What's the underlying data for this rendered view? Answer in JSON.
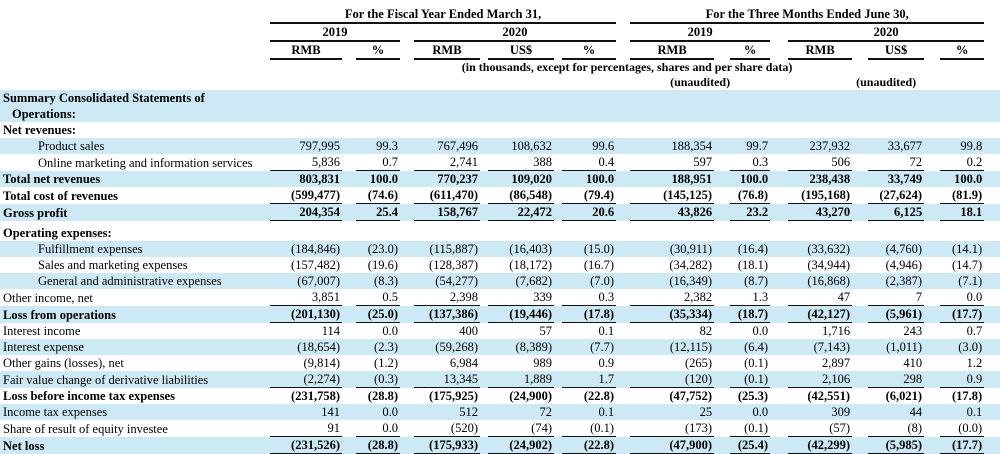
{
  "colors": {
    "row_highlight": "#cde9f6",
    "rule": "#111111",
    "text": "#000000"
  },
  "table": {
    "note": "(in thousands, except for percentages, shares and per share data)",
    "sections": [
      {
        "title": "For the Fiscal Year Ended March 31,",
        "years": [
          {
            "label": "2019",
            "cols": [
              "RMB",
              "%"
            ]
          },
          {
            "label": "2020",
            "cols": [
              "RMB",
              "US$",
              "%"
            ]
          }
        ]
      },
      {
        "title": "For the Three Months Ended June 30,",
        "years": [
          {
            "label": "2019",
            "cols": [
              "RMB",
              "%"
            ],
            "unaudited": "(unaudited)"
          },
          {
            "label": "2020",
            "cols": [
              "RMB",
              "US$",
              "%"
            ],
            "unaudited": "(unaudited)"
          }
        ]
      }
    ],
    "rows": [
      {
        "label": "Summary Consolidated Statements of Operations:",
        "bold": true,
        "highlight": true,
        "indent": false,
        "underline": false,
        "values": null
      },
      {
        "label": "Net revenues:",
        "bold": true,
        "highlight": false,
        "indent": false,
        "underline": false,
        "values": null
      },
      {
        "label": "Product sales",
        "bold": false,
        "highlight": true,
        "indent": true,
        "underline": false,
        "values": [
          "797,995",
          "99.3",
          "767,496",
          "108,632",
          "99.6",
          "188,354",
          "99.7",
          "237,932",
          "33,677",
          "99.8"
        ]
      },
      {
        "label": "Online marketing and information services",
        "bold": false,
        "highlight": false,
        "indent": true,
        "underline": true,
        "values": [
          "5,836",
          "0.7",
          "2,741",
          "388",
          "0.4",
          "597",
          "0.3",
          "506",
          "72",
          "0.2"
        ]
      },
      {
        "label": "Total net revenues",
        "bold": true,
        "highlight": true,
        "indent": false,
        "underline": false,
        "values": [
          "803,831",
          "100.0",
          "770,237",
          "109,020",
          "100.0",
          "188,951",
          "100.0",
          "238,438",
          "33,749",
          "100.0"
        ]
      },
      {
        "label": "Total cost of revenues",
        "bold": true,
        "highlight": false,
        "indent": false,
        "underline": true,
        "values": [
          "(599,477)",
          "(74.6)",
          "(611,470)",
          "(86,548)",
          "(79.4)",
          "(145,125)",
          "(76.8)",
          "(195,168)",
          "(27,624)",
          "(81.9)"
        ]
      },
      {
        "label": "Gross profit",
        "bold": true,
        "highlight": true,
        "indent": false,
        "underline": true,
        "values": [
          "204,354",
          "25.4",
          "158,767",
          "22,472",
          "20.6",
          "43,826",
          "23.2",
          "43,270",
          "6,125",
          "18.1"
        ]
      },
      {
        "label": "Operating expenses:",
        "bold": true,
        "highlight": false,
        "indent": false,
        "underline": false,
        "gap_before": true,
        "values": null
      },
      {
        "label": "Fulfillment expenses",
        "bold": false,
        "highlight": true,
        "indent": true,
        "underline": false,
        "values": [
          "(184,846)",
          "(23.0)",
          "(115,887)",
          "(16,403)",
          "(15.0)",
          "(30,911)",
          "(16.4)",
          "(33,632)",
          "(4,760)",
          "(14.1)"
        ]
      },
      {
        "label": "Sales and marketing expenses",
        "bold": false,
        "highlight": false,
        "indent": true,
        "underline": false,
        "values": [
          "(157,482)",
          "(19.6)",
          "(128,387)",
          "(18,172)",
          "(16.7)",
          "(34,282)",
          "(18.1)",
          "(34,944)",
          "(4,946)",
          "(14.7)"
        ]
      },
      {
        "label": "General and administrative expenses",
        "bold": false,
        "highlight": true,
        "indent": true,
        "underline": false,
        "values": [
          "(67,007)",
          "(8.3)",
          "(54,277)",
          "(7,682)",
          "(7.0)",
          "(16,349)",
          "(8.7)",
          "(16,868)",
          "(2,387)",
          "(7.1)"
        ]
      },
      {
        "label": "Other income, net",
        "bold": false,
        "highlight": false,
        "indent": false,
        "underline": true,
        "values": [
          "3,851",
          "0.5",
          "2,398",
          "339",
          "0.3",
          "2,382",
          "1.3",
          "47",
          "7",
          "0.0"
        ]
      },
      {
        "label": "Loss from operations",
        "bold": true,
        "highlight": true,
        "indent": false,
        "underline": true,
        "values": [
          "(201,130)",
          "(25.0)",
          "(137,386)",
          "(19,446)",
          "(17.8)",
          "(35,334)",
          "(18.7)",
          "(42,127)",
          "(5,961)",
          "(17.7)"
        ]
      },
      {
        "label": "Interest income",
        "bold": false,
        "highlight": false,
        "indent": false,
        "underline": false,
        "values": [
          "114",
          "0.0",
          "400",
          "57",
          "0.1",
          "82",
          "0.0",
          "1,716",
          "243",
          "0.7"
        ]
      },
      {
        "label": "Interest expense",
        "bold": false,
        "highlight": true,
        "indent": false,
        "underline": false,
        "values": [
          "(18,654)",
          "(2.3)",
          "(59,268)",
          "(8,389)",
          "(7.7)",
          "(12,115)",
          "(6.4)",
          "(7,143)",
          "(1,011)",
          "(3.0)"
        ]
      },
      {
        "label": "Other gains (losses), net",
        "bold": false,
        "highlight": false,
        "indent": false,
        "underline": false,
        "values": [
          "(9,814)",
          "(1.2)",
          "6,984",
          "989",
          "0.9",
          "(265)",
          "(0.1)",
          "2,897",
          "410",
          "1.2"
        ]
      },
      {
        "label": "Fair value change of derivative liabilities",
        "bold": false,
        "highlight": true,
        "indent": false,
        "underline": true,
        "values": [
          "(2,274)",
          "(0.3)",
          "13,345",
          "1,889",
          "1.7",
          "(120)",
          "(0.1)",
          "2,106",
          "298",
          "0.9"
        ]
      },
      {
        "label": "Loss before income tax expenses",
        "bold": true,
        "highlight": false,
        "indent": false,
        "underline": false,
        "values": [
          "(231,758)",
          "(28.8)",
          "(175,925)",
          "(24,900)",
          "(22.8)",
          "(47,752)",
          "(25.3)",
          "(42,551)",
          "(6,021)",
          "(17.8)"
        ]
      },
      {
        "label": "Income tax expenses",
        "bold": false,
        "highlight": true,
        "indent": false,
        "underline": false,
        "values": [
          "141",
          "0.0",
          "512",
          "72",
          "0.1",
          "25",
          "0.0",
          "309",
          "44",
          "0.1"
        ]
      },
      {
        "label": "Share of result of equity investee",
        "bold": false,
        "highlight": false,
        "indent": false,
        "underline": true,
        "values": [
          "91",
          "0.0",
          "(520)",
          "(74)",
          "(0.1)",
          "(173)",
          "(0.1)",
          "(57)",
          "(8)",
          "(0.0)"
        ]
      },
      {
        "label": "Net loss",
        "bold": true,
        "highlight": true,
        "indent": false,
        "underline": true,
        "values": [
          "(231,526)",
          "(28.8)",
          "(175,933)",
          "(24,902)",
          "(22.8)",
          "(47,900)",
          "(25.4)",
          "(42,299)",
          "(5,985)",
          "(17.7)"
        ]
      }
    ]
  }
}
